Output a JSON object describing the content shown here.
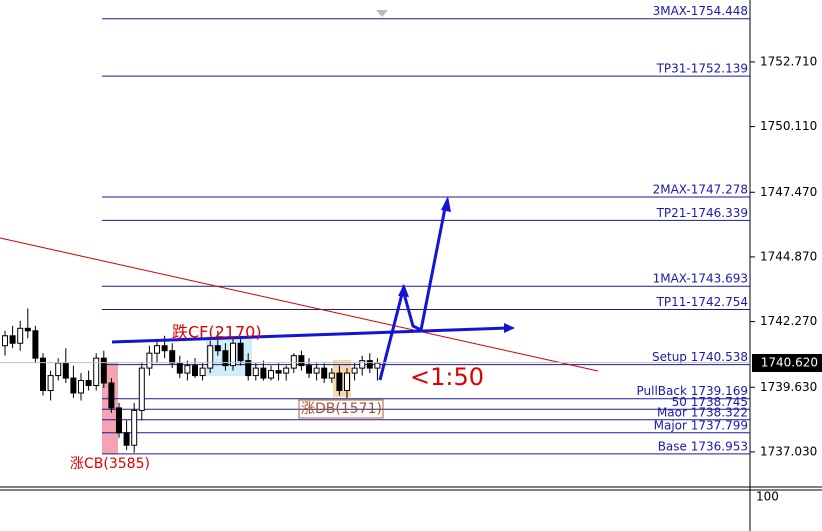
{
  "chart_data": {
    "type": "candlestick",
    "ylim": [
      1735.62,
      1755.2
    ],
    "yticks": [
      {
        "value": 1752.71,
        "label": "1752.710"
      },
      {
        "value": 1750.11,
        "label": "1750.110"
      },
      {
        "value": 1747.47,
        "label": "1747.470"
      },
      {
        "value": 1744.87,
        "label": "1744.870"
      },
      {
        "value": 1742.27,
        "label": "1742.270"
      },
      {
        "value": 1739.63,
        "label": "1739.630"
      },
      {
        "value": 1737.03,
        "label": "1737.030"
      }
    ],
    "current_price": {
      "value": 1740.62,
      "label": "1740.620"
    },
    "levels": [
      {
        "label": "3MAX-1754.448",
        "value": 1754.448
      },
      {
        "label": "TP31-1752.139",
        "value": 1752.139
      },
      {
        "label": "2MAX-1747.278",
        "value": 1747.278
      },
      {
        "label": "TP21-1746.339",
        "value": 1746.339
      },
      {
        "label": "1MAX-1743.693",
        "value": 1743.693
      },
      {
        "label": "TP11-1742.754",
        "value": 1742.754
      },
      {
        "label": "Setup 1740.538",
        "value": 1740.538
      },
      {
        "label": "PullBack 1739.169",
        "value": 1739.169
      },
      {
        "label": "50 1738.745",
        "value": 1738.745
      },
      {
        "label": "Maor 1738.322",
        "value": 1738.322
      },
      {
        "label": "Major 1737.799",
        "value": 1737.799
      },
      {
        "label": "Base 1736.953",
        "value": 1736.953
      }
    ],
    "annotations": [
      "跌CF(2170)",
      "涨DB(1571)",
      "涨CB(3585)",
      "<1:50"
    ],
    "indicator_label": "100",
    "open": [
      1741.3,
      1741.7,
      1741.4,
      1742.0,
      1741.9,
      1740.8,
      1739.5,
      1740.1,
      1740.6,
      1740.0,
      1739.4,
      1739.9,
      1739.7,
      1740.8,
      1739.8,
      1738.8,
      1737.8,
      1737.3,
      1738.7,
      1740.4,
      1741.0,
      1741.3,
      1741.1,
      1740.6,
      1740.2,
      1740.5,
      1740.1,
      1740.4,
      1741.3,
      1741.1,
      1740.5,
      1741.4,
      1740.7,
      1740.1,
      1740.4,
      1740.0,
      1740.3,
      1740.2,
      1740.4,
      1740.9,
      1740.5,
      1740.2,
      1740.4,
      1740.0,
      1740.2,
      1739.5,
      1740.2,
      1740.4,
      1740.7,
      1740.4
    ],
    "high": [
      1741.9,
      1742.1,
      1742.3,
      1742.8,
      1742.1,
      1741.0,
      1740.3,
      1740.8,
      1741.2,
      1740.5,
      1740.2,
      1740.3,
      1741.0,
      1741.1,
      1740.0,
      1739.0,
      1738.3,
      1739.0,
      1740.6,
      1741.3,
      1741.5,
      1741.7,
      1741.4,
      1740.9,
      1740.7,
      1740.8,
      1740.6,
      1741.5,
      1741.9,
      1741.4,
      1741.6,
      1741.6,
      1741.0,
      1740.6,
      1740.7,
      1740.5,
      1740.6,
      1740.5,
      1741.0,
      1741.1,
      1740.8,
      1740.6,
      1740.6,
      1740.4,
      1740.5,
      1740.4,
      1740.6,
      1740.9,
      1741.0,
      1740.8
    ],
    "low": [
      1740.9,
      1741.2,
      1741.1,
      1741.6,
      1740.6,
      1739.3,
      1739.1,
      1739.9,
      1739.8,
      1739.2,
      1739.1,
      1739.5,
      1739.5,
      1739.6,
      1738.6,
      1737.6,
      1737.1,
      1737.0,
      1738.3,
      1740.1,
      1740.6,
      1740.8,
      1740.4,
      1740.0,
      1739.9,
      1740.0,
      1739.9,
      1740.2,
      1740.9,
      1740.3,
      1740.3,
      1740.5,
      1739.9,
      1739.9,
      1739.9,
      1739.9,
      1739.9,
      1739.9,
      1740.2,
      1740.3,
      1740.0,
      1739.9,
      1739.8,
      1739.8,
      1739.3,
      1739.2,
      1739.9,
      1740.1,
      1740.2,
      1739.9
    ],
    "close": [
      1741.7,
      1741.4,
      1742.0,
      1741.9,
      1740.8,
      1739.5,
      1740.1,
      1740.6,
      1740.0,
      1739.4,
      1739.9,
      1739.7,
      1740.8,
      1739.8,
      1738.8,
      1737.8,
      1737.3,
      1738.7,
      1740.4,
      1741.0,
      1741.3,
      1741.1,
      1740.6,
      1740.2,
      1740.5,
      1740.1,
      1740.4,
      1741.3,
      1741.1,
      1740.5,
      1741.4,
      1740.7,
      1740.1,
      1740.4,
      1740.0,
      1740.3,
      1740.2,
      1740.4,
      1740.9,
      1740.5,
      1740.2,
      1740.4,
      1740.0,
      1740.2,
      1739.5,
      1740.2,
      1740.4,
      1740.7,
      1740.4,
      1740.6
    ]
  }
}
